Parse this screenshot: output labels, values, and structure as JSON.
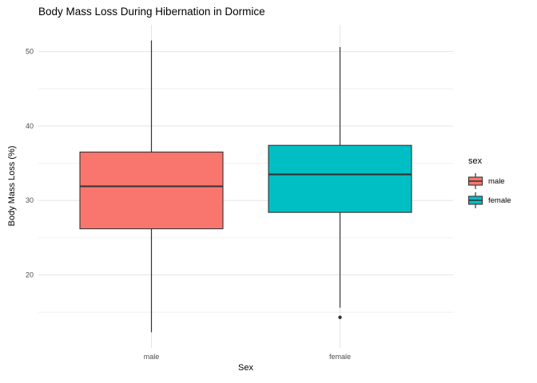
{
  "title": "Body Mass Loss During Hibernation in Dormice",
  "colors": {
    "male_fill": "#F8766D",
    "female_fill": "#00BFC4",
    "box_stroke": "#333333",
    "grid_major": "#E5E5E5",
    "grid_minor": "#F0F0F0",
    "axis_text": "#4D4D4D",
    "outlier": "#333333",
    "background": "#FFFFFF"
  },
  "chart_data": {
    "type": "boxplot",
    "title": "Body Mass Loss During Hibernation in Dormice",
    "xlabel": "Sex",
    "ylabel": "Body Mass Loss (%)",
    "categories": [
      "male",
      "female"
    ],
    "y_ticks": [
      20,
      30,
      40,
      50
    ],
    "y_minor_ticks": [
      15,
      25,
      35,
      45
    ],
    "ylim": [
      10.2,
      53.6
    ],
    "grid": true,
    "legend": {
      "title": "sex",
      "position": "right",
      "entries": [
        {
          "label": "male",
          "color": "#F8766D"
        },
        {
          "label": "female",
          "color": "#00BFC4"
        }
      ]
    },
    "series": [
      {
        "category": "male",
        "color": "#F8766D",
        "whisker_low": 12.3,
        "q1": 26.2,
        "median": 31.9,
        "q3": 36.5,
        "whisker_high": 51.5,
        "outliers": []
      },
      {
        "category": "female",
        "color": "#00BFC4",
        "whisker_low": 15.6,
        "q1": 28.4,
        "median": 33.5,
        "q3": 37.4,
        "whisker_high": 50.6,
        "outliers": [
          14.3
        ]
      }
    ]
  }
}
